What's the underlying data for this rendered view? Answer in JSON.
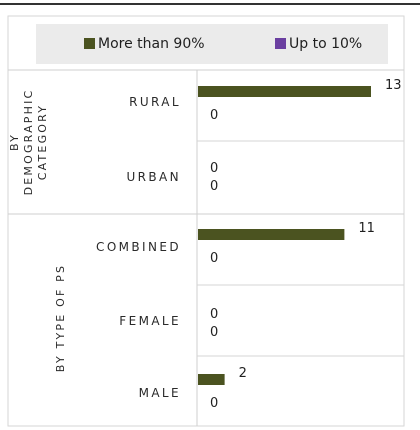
{
  "chart_data": {
    "type": "bar",
    "orientation": "horizontal",
    "legend_position": "top",
    "series": [
      {
        "name": "More than 90%",
        "color": "#4b5320"
      },
      {
        "name": "Up to 10%",
        "color": "#6a3fa0"
      }
    ],
    "groups": [
      {
        "label": "BY DEMOGRAPHIC CATEGORY",
        "categories": [
          {
            "label": "RURAL",
            "values": [
              13,
              0
            ]
          },
          {
            "label": "URBAN",
            "values": [
              0,
              0
            ]
          }
        ]
      },
      {
        "label": "BY TYPE OF PS",
        "categories": [
          {
            "label": "COMBINED",
            "values": [
              11,
              0
            ]
          },
          {
            "label": "FEMALE",
            "values": [
              0,
              0
            ]
          },
          {
            "label": "MALE",
            "values": [
              2,
              0
            ]
          }
        ]
      }
    ],
    "xlim": [
      0,
      13
    ]
  }
}
